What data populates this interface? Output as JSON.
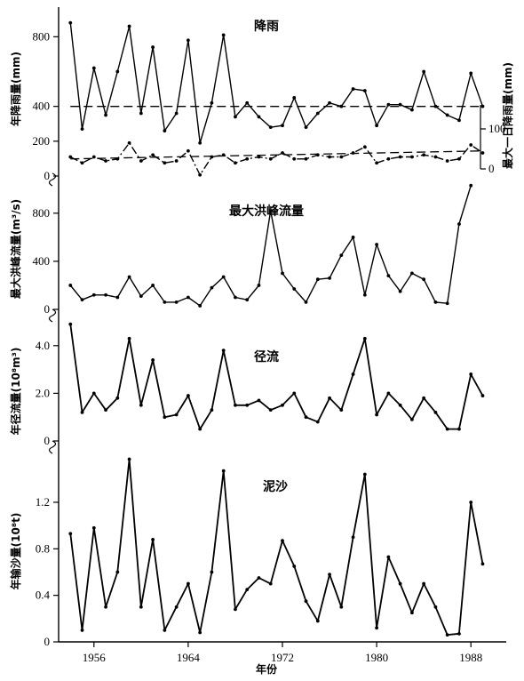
{
  "chart_data": {
    "type": "line",
    "x": [
      1954,
      1955,
      1956,
      1957,
      1958,
      1959,
      1960,
      1961,
      1962,
      1963,
      1964,
      1965,
      1966,
      1967,
      1968,
      1969,
      1970,
      1971,
      1972,
      1973,
      1974,
      1975,
      1976,
      1977,
      1978,
      1979,
      1980,
      1981,
      1982,
      1983,
      1984,
      1985,
      1986,
      1987,
      1988,
      1989
    ],
    "xticks": [
      "1956",
      "1964",
      "1972",
      "1980",
      "1988"
    ],
    "xtick_values": [
      1956,
      1964,
      1972,
      1980,
      1988
    ],
    "xlabel": "年份",
    "xlim": [
      1953,
      1991
    ],
    "panels": [
      {
        "title": "降雨",
        "ylabel": "年降雨量(mm)",
        "ylabel2": "最大一日降雨量(mm)",
        "ylim": [
          0,
          960
        ],
        "yticks": [
          "0",
          "200",
          "400",
          "800"
        ],
        "ytick_values": [
          0,
          200,
          400,
          800
        ],
        "yticks2": [
          "0",
          "100"
        ],
        "ytick2_values": [
          0,
          100
        ],
        "ylim2": [
          0,
          160
        ],
        "series": [
          {
            "values": [
              880,
              270,
              620,
              350,
              600,
              860,
              360,
              740,
              260,
              360,
              780,
              190,
              420,
              810,
              340,
              420,
              340,
              280,
              290,
              450,
              280,
              360,
              420,
              400,
              500,
              490,
              290,
              410,
              410,
              380,
              600,
              400,
              350,
              320,
              590,
              400
            ],
            "mean": 400,
            "style": "solid"
          },
          {
            "values": [
              30,
              15,
              30,
              20,
              25,
              65,
              20,
              35,
              15,
              20,
              45,
              -15,
              30,
              35,
              15,
              25,
              30,
              25,
              40,
              25,
              25,
              35,
              30,
              30,
              40,
              55,
              15,
              25,
              30,
              30,
              35,
              30,
              20,
              25,
              60,
              40
            ],
            "mean": 25,
            "mean_end": 45,
            "style": "dashdot"
          }
        ]
      },
      {
        "title": "最大洪峰流量",
        "ylabel": "最大洪峰流量(m³/s)",
        "ylim": [
          0,
          1050
        ],
        "yticks": [
          "0",
          "400",
          "800"
        ],
        "ytick_values": [
          0,
          400,
          800
        ],
        "series": [
          {
            "values": [
              200,
              80,
              120,
              120,
              100,
              270,
              110,
              200,
              60,
              60,
              100,
              30,
              180,
              270,
              100,
              80,
              200,
              820,
              300,
              170,
              60,
              250,
              260,
              450,
              600,
              120,
              540,
              280,
              150,
              300,
              250,
              60,
              50,
              710,
              1030,
              null
            ]
          }
        ]
      },
      {
        "title": "径流",
        "ylabel": "年径流量(10⁸m³)",
        "ylim": [
          0,
          5.0
        ],
        "yticks": [
          "0",
          "2.0",
          "4.0"
        ],
        "ytick_values": [
          0,
          2.0,
          4.0
        ],
        "series": [
          {
            "values": [
              4.9,
              1.2,
              2.0,
              1.3,
              1.8,
              4.3,
              1.5,
              3.4,
              1.0,
              1.1,
              1.9,
              0.5,
              1.3,
              3.8,
              1.5,
              1.5,
              1.7,
              1.3,
              1.5,
              2.0,
              1.0,
              0.8,
              1.8,
              1.3,
              2.8,
              4.3,
              1.1,
              2.0,
              1.5,
              0.9,
              1.8,
              1.2,
              0.5,
              0.5,
              2.8,
              1.9
            ]
          }
        ]
      },
      {
        "title": "泥沙",
        "ylabel": "年输沙量(10⁸t)",
        "ylim": [
          0,
          1.62
        ],
        "yticks": [
          "0",
          "0.4",
          "0.8",
          "1.2"
        ],
        "ytick_values": [
          0,
          0.4,
          0.8,
          1.2
        ],
        "series": [
          {
            "values": [
              0.93,
              0.1,
              0.98,
              0.3,
              0.6,
              1.57,
              0.3,
              0.88,
              0.1,
              0.3,
              0.5,
              0.08,
              0.6,
              1.47,
              0.28,
              0.45,
              0.55,
              0.5,
              0.87,
              0.65,
              0.35,
              0.18,
              0.58,
              0.3,
              0.9,
              1.44,
              0.12,
              0.73,
              0.5,
              0.25,
              0.5,
              0.3,
              0.06,
              0.07,
              1.2,
              0.67
            ]
          }
        ]
      }
    ]
  }
}
